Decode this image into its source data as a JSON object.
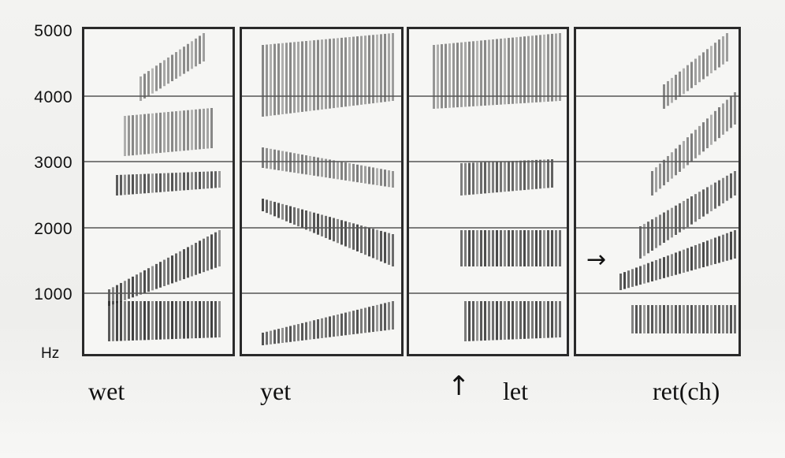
{
  "y_axis": {
    "ticks": [
      "5000",
      "4000",
      "3000",
      "2000",
      "1000"
    ],
    "unit": "Hz",
    "range": [
      0,
      5000
    ]
  },
  "panels": [
    {
      "word": "wet"
    },
    {
      "word": "yet"
    },
    {
      "word": "let"
    },
    {
      "word": "ret(ch)"
    }
  ],
  "markers": {
    "up_arrow": "↑",
    "right_arrow": "→"
  },
  "colors": {
    "frame": "#2a2a2a",
    "gridline": "#555555",
    "ink": "#2b2b2b"
  }
}
